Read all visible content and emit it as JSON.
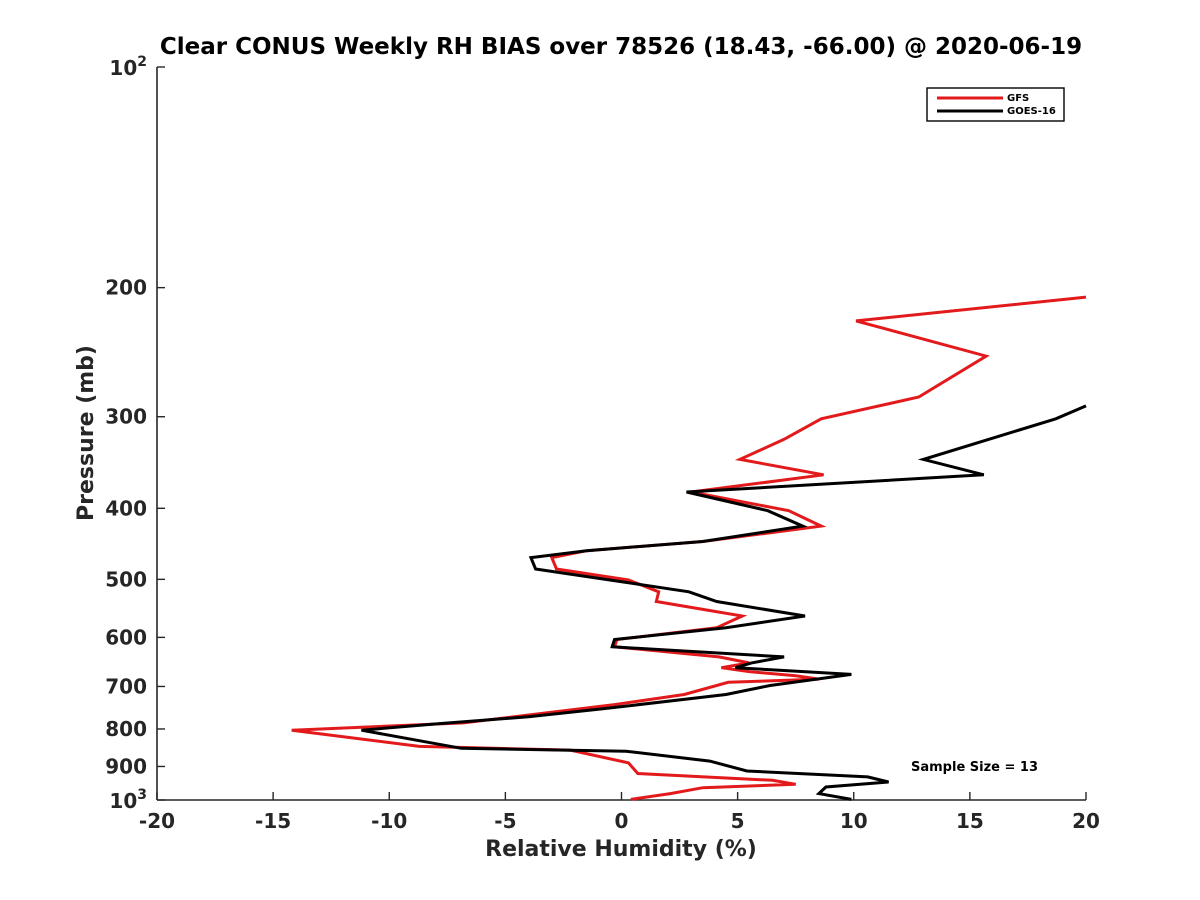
{
  "chart_data": {
    "type": "line",
    "title": "Clear CONUS Weekly RH BIAS over 78526 (18.43, -66.00) @ 2020-06-19",
    "xlabel": "Relative Humidity (%)",
    "ylabel": "Pressure (mb)",
    "xlim": [
      -20,
      20
    ],
    "ylim": [
      100,
      1000
    ],
    "y_scale": "log",
    "y_reversed": true,
    "grid": false,
    "legend_position": "top-right",
    "x_ticks": [
      -20,
      -15,
      -10,
      -5,
      0,
      5,
      10,
      15,
      20
    ],
    "x_tick_labels": [
      "-20",
      "-15",
      "-10",
      "-5",
      "0",
      "5",
      "10",
      "15",
      "20"
    ],
    "y_ticks": [
      100,
      200,
      300,
      400,
      500,
      600,
      700,
      800,
      900,
      1000
    ],
    "y_tick_labels": [
      "",
      "200",
      "300",
      "400",
      "500",
      "600",
      "700",
      "800",
      "900",
      ""
    ],
    "y_tick_exponent_labels": [
      {
        "value": 100,
        "base": "10",
        "exp": "2"
      },
      {
        "value": 1000,
        "base": "10",
        "exp": "3"
      }
    ],
    "annotation": "Sample Size = 13",
    "series": [
      {
        "name": "GFS",
        "color": "#e31a1c",
        "points": [
          [
            20,
            206
          ],
          [
            10.1,
            222
          ],
          [
            15.7,
            248
          ],
          [
            12.8,
            282
          ],
          [
            8.6,
            302
          ],
          [
            7.0,
            322
          ],
          [
            5.1,
            343
          ],
          [
            8.7,
            360
          ],
          [
            3.0,
            380
          ],
          [
            7.2,
            403
          ],
          [
            8.6,
            423
          ],
          [
            3.5,
            444
          ],
          [
            -1.5,
            457
          ],
          [
            -3.0,
            467
          ],
          [
            -2.8,
            484
          ],
          [
            0.3,
            501
          ],
          [
            1.6,
            520
          ],
          [
            1.5,
            536
          ],
          [
            5.2,
            561
          ],
          [
            4.1,
            582
          ],
          [
            -0.2,
            604
          ],
          [
            -0.3,
            618
          ],
          [
            4.2,
            638
          ],
          [
            5.5,
            650
          ],
          [
            4.3,
            660
          ],
          [
            5.5,
            668
          ],
          [
            7.5,
            677
          ],
          [
            8.5,
            684
          ],
          [
            4.6,
            691
          ],
          [
            2.7,
            718
          ],
          [
            -0.3,
            741
          ],
          [
            -3.9,
            765
          ],
          [
            -6.8,
            785
          ],
          [
            -14.2,
            803
          ],
          [
            -8.7,
            845
          ],
          [
            -2.2,
            855
          ],
          [
            0.3,
            890
          ],
          [
            0.7,
            920
          ],
          [
            6.5,
            940
          ],
          [
            7.5,
            952
          ],
          [
            3.5,
            962
          ],
          [
            2.1,
            980
          ],
          [
            0.4,
            998
          ]
        ]
      },
      {
        "name": "GOES-16",
        "color": "#000000",
        "points": [
          [
            20,
            290
          ],
          [
            18.7,
            302
          ],
          [
            13.0,
            343
          ],
          [
            15.6,
            360
          ],
          [
            2.8,
            380
          ],
          [
            6.3,
            403
          ],
          [
            7.8,
            423
          ],
          [
            3.5,
            444
          ],
          [
            -1.5,
            457
          ],
          [
            -3.9,
            467
          ],
          [
            -3.7,
            484
          ],
          [
            -0.5,
            501
          ],
          [
            2.9,
            520
          ],
          [
            4.1,
            536
          ],
          [
            7.9,
            561
          ],
          [
            4.5,
            582
          ],
          [
            -0.3,
            604
          ],
          [
            -0.4,
            618
          ],
          [
            7.0,
            638
          ],
          [
            5.6,
            650
          ],
          [
            4.9,
            660
          ],
          [
            9.9,
            674
          ],
          [
            6.4,
            698
          ],
          [
            4.5,
            718
          ],
          [
            -0.8,
            751
          ],
          [
            -4.0,
            770
          ],
          [
            -7.9,
            787
          ],
          [
            -11.2,
            803
          ],
          [
            -6.9,
            850
          ],
          [
            0.2,
            858
          ],
          [
            3.8,
            885
          ],
          [
            5.4,
            913
          ],
          [
            10.6,
            930
          ],
          [
            11.5,
            945
          ],
          [
            8.8,
            960
          ],
          [
            8.5,
            980
          ],
          [
            9.9,
            998
          ]
        ]
      }
    ]
  }
}
